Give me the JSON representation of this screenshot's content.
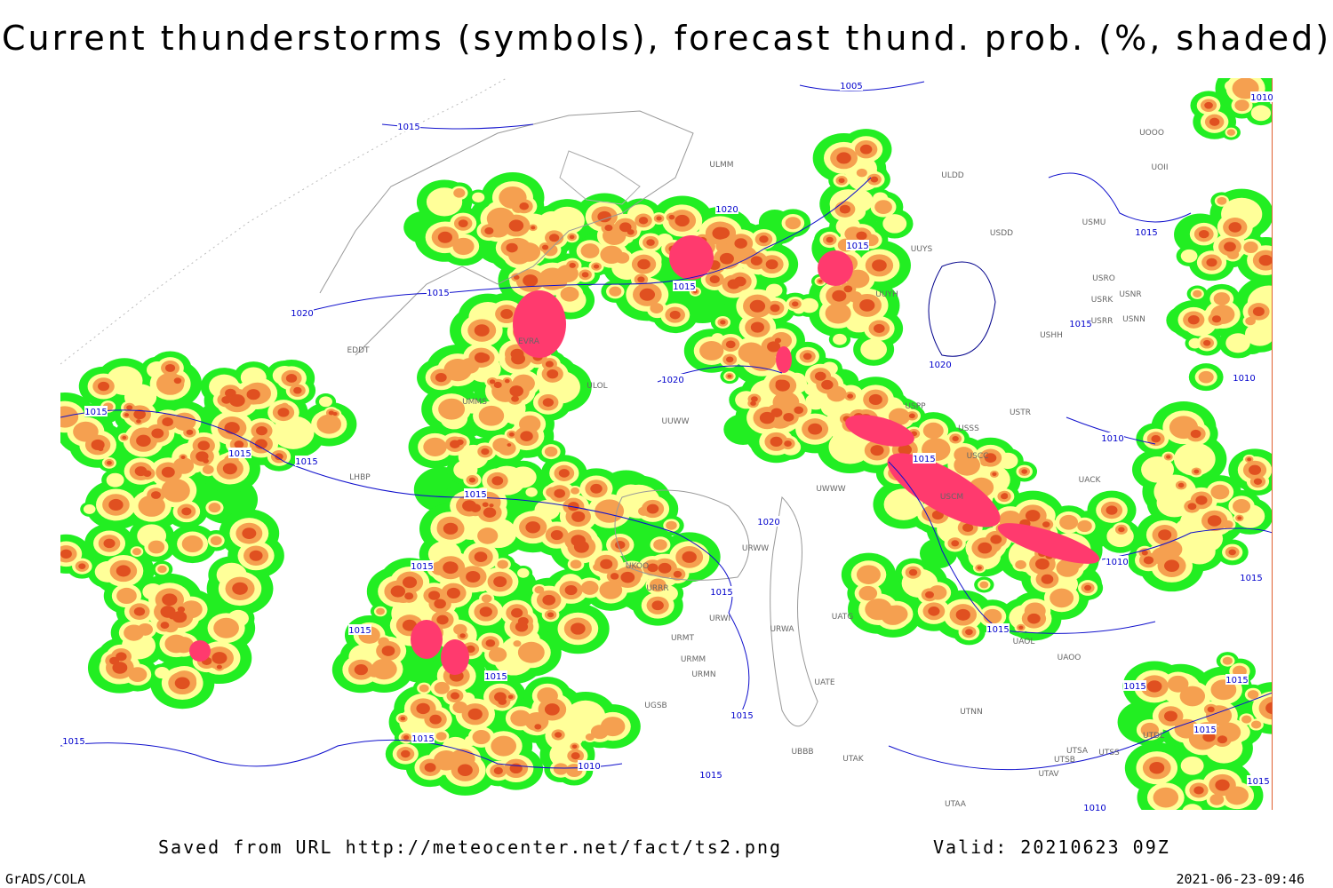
{
  "header": {
    "title": "Current thunderstorms (symbols), forecast thund. prob. (%, shaded)"
  },
  "map": {
    "isobar_labels": [
      "1005",
      "1015",
      "1020",
      "1015",
      "1015",
      "1020",
      "1015",
      "1015",
      "1015",
      "1020",
      "1020",
      "1015",
      "1015",
      "1015",
      "1015",
      "1010",
      "1015",
      "1020",
      "1015",
      "1010",
      "1015",
      "1015",
      "1015",
      "1015",
      "1015",
      "1015",
      "1015",
      "1015",
      "1015",
      "1010",
      "1015",
      "1010",
      "1015",
      "1010",
      "1010",
      "1015",
      "1015"
    ],
    "stations": [
      "ULMM",
      "ULDD",
      "UUYS",
      "USDD",
      "USMU",
      "UOOO",
      "UOII",
      "UUYH",
      "USRO",
      "USRK",
      "USNR",
      "USRR",
      "USNN",
      "USHH",
      "EVRA",
      "EDDT",
      "ULOL",
      "UUWW",
      "UMMS",
      "USSS",
      "USTR",
      "USPP",
      "USCC",
      "USCM",
      "UACK",
      "UAOL",
      "UAOO",
      "UTNN",
      "UATE",
      "UATG",
      "URWA",
      "URWI",
      "URMT",
      "URMM",
      "URMN",
      "URRR",
      "UKOO",
      "UBBB",
      "UTAK",
      "UTAA",
      "UTSA",
      "UTSS",
      "UTSB",
      "UTAV",
      "UTDL",
      "LHBP",
      "UWWW",
      "URWW",
      "UGSB"
    ]
  },
  "footer": {
    "saved_from": "Saved from URL http://meteocenter.net/fact/ts2.png",
    "valid": "Valid: 20210623 09Z",
    "software": "GrADS/COLA",
    "timestamp": "2021-06-23-09:46"
  }
}
